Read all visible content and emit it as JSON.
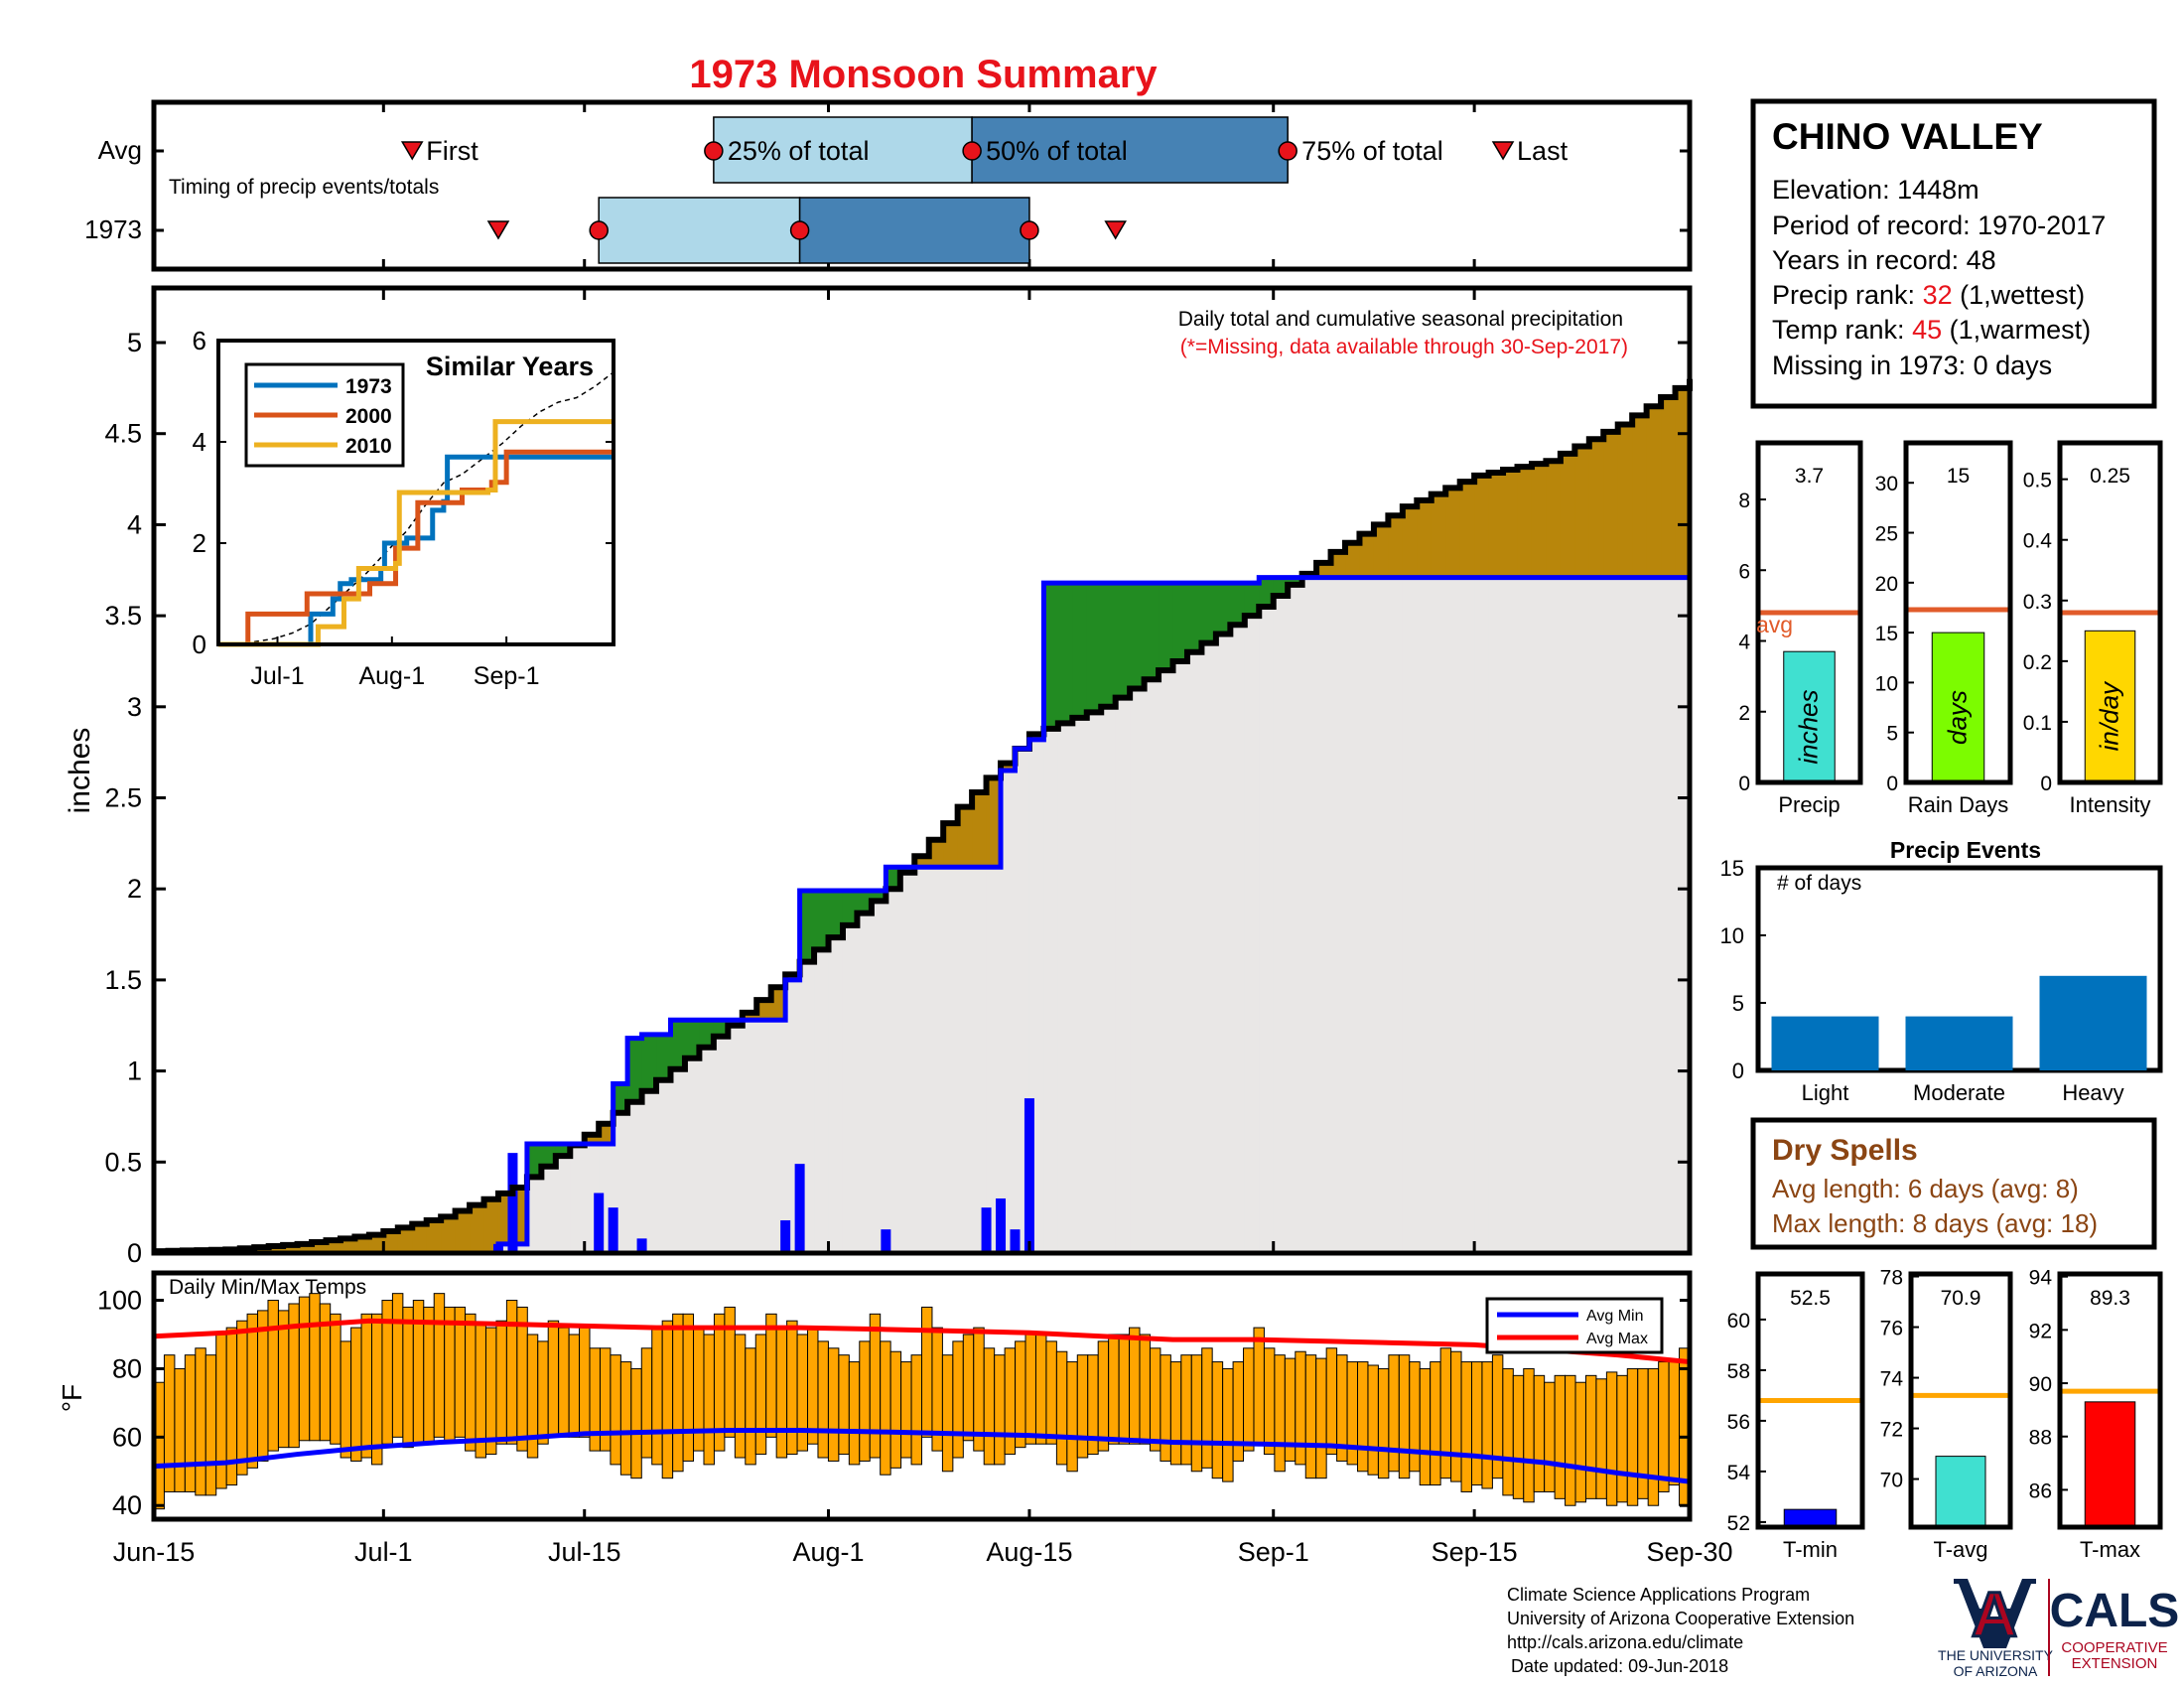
{
  "title": "1973 Monsoon Summary",
  "station": {
    "name": "CHINO VALLEY",
    "lines": {
      "elevation": "Elevation: 1448m",
      "period": "Period of record: 1970-2017",
      "years": "Years in record: 48",
      "precip_rank_prefix": "Precip rank: ",
      "precip_rank_value": "32",
      "precip_rank_suffix": " (1,wettest)",
      "temp_rank_prefix": "Temp rank: ",
      "temp_rank_value": "45",
      "temp_rank_suffix": " (1,warmest)",
      "missing": "Missing in 1973: 0 days"
    }
  },
  "colors": {
    "title": "#e8131b",
    "rank": "#e8131b",
    "light_blue": "#aed8e9",
    "mid_blue": "#4682b4",
    "marker_red": "#e8131b",
    "cum_fill_brown": "#b8860b",
    "cum_fill_green": "#228b22",
    "cum_bg": "#e9e7e6",
    "daily_bar": "#0000ff",
    "orange": "#ffa500",
    "avg_line": "#e15b2a",
    "dry_brown": "#8b4513"
  },
  "footer": {
    "line1": "Climate Science Applications Program",
    "line2": "University of Arizona Cooperative Extension",
    "line3": "http://cals.arizona.edu/climate",
    "line4": "Date updated: 09-Jun-2018"
  },
  "logos": {
    "ua_letter": "A",
    "ua_text1": "THE UNIVERSITY",
    "ua_text2": "OF ARIZONA",
    "cals": "CALS",
    "cals_text1": "COOPERATIVE",
    "cals_text2": "EXTENSION"
  },
  "chart_data": [
    {
      "id": "timing",
      "type": "box",
      "annotation": "Timing of precip events/totals",
      "rows": [
        {
          "label": "Avg",
          "first": "Jul-3",
          "p25": "Jul-24",
          "p50": "Aug-11",
          "p75": "Sep-2",
          "last": "Sep-17",
          "labels": {
            "first": "First",
            "p25": "25% of total",
            "p50": "50% of total",
            "p75": "75% of total",
            "last": "Last"
          }
        },
        {
          "label": "1973",
          "first": "Jul-9",
          "p25": "Jul-16",
          "p50": "Jul-30",
          "p75": "Aug-15",
          "last": "Aug-21"
        }
      ]
    },
    {
      "id": "cumulative",
      "type": "area",
      "annotation": "Daily total and cumulative seasonal precipitation",
      "annotation2": "(*=Missing, data available through 30-Sep-2017)",
      "ylabel": "inches",
      "ylim": [
        0,
        5.3
      ],
      "yticks": [
        "0",
        "0.5",
        "1",
        "1.5",
        "2",
        "2.5",
        "3",
        "3.5",
        "4",
        "4.5",
        "5"
      ],
      "xticks": [
        "Jun-15",
        "Jul-1",
        "Jul-15",
        "Aug-1",
        "Aug-15",
        "Sep-1",
        "Sep-15",
        "Sep-30"
      ],
      "avg_cumulative": {
        "dates": [
          "Jun-15",
          "Jun-20",
          "Jun-25",
          "Jun-30",
          "Jul-5",
          "Jul-10",
          "Jul-15",
          "Jul-20",
          "Jul-25",
          "Jul-30",
          "Aug-5",
          "Aug-10",
          "Aug-15",
          "Aug-20",
          "Aug-25",
          "Aug-31",
          "Sep-5",
          "Sep-10",
          "Sep-15",
          "Sep-20",
          "Sep-25",
          "Sep-30"
        ],
        "values": [
          0.01,
          0.02,
          0.05,
          0.1,
          0.2,
          0.36,
          0.65,
          0.95,
          1.25,
          1.6,
          2.0,
          2.45,
          2.85,
          3.0,
          3.25,
          3.55,
          3.85,
          4.1,
          4.27,
          4.35,
          4.55,
          4.8
        ]
      },
      "year_1973_cumulative": {
        "dates": [
          "Jun-15",
          "Jul-8",
          "Jul-9",
          "Jul-10",
          "Jul-11",
          "Jul-16",
          "Jul-17",
          "Jul-18",
          "Jul-19",
          "Jul-21",
          "Jul-27",
          "Jul-28",
          "Jul-29",
          "Jul-30",
          "Aug-5",
          "Aug-9",
          "Aug-12",
          "Aug-13",
          "Aug-14",
          "Aug-15",
          "Aug-16",
          "Aug-31",
          "Sep-30"
        ],
        "values": [
          0,
          0,
          0.05,
          0.05,
          0.6,
          0.6,
          0.93,
          1.18,
          1.2,
          1.28,
          1.28,
          1.28,
          1.5,
          1.99,
          2.12,
          2.12,
          2.12,
          2.65,
          2.77,
          2.82,
          3.68,
          3.71,
          3.71
        ]
      },
      "daily_1973": {
        "dates": [
          "Jul-9",
          "Jul-10",
          "Jul-16",
          "Jul-17",
          "Jul-19",
          "Jul-29",
          "Jul-30",
          "Aug-5",
          "Aug-12",
          "Aug-13",
          "Aug-14",
          "Aug-15"
        ],
        "values": [
          0.05,
          0.55,
          0.33,
          0.25,
          0.08,
          0.18,
          0.49,
          0.13,
          0.25,
          0.3,
          0.13,
          0.85
        ]
      }
    },
    {
      "id": "similar_years",
      "type": "line",
      "title": "Similar Years",
      "ylim": [
        0,
        6
      ],
      "yticks": [
        "0",
        "2",
        "4",
        "6"
      ],
      "xticks": [
        "Jul-1",
        "Aug-1",
        "Sep-1"
      ],
      "series": [
        {
          "name": "1973",
          "color": "#0072bd",
          "dates": [
            "Jun-15",
            "Jul-9",
            "Jul-10",
            "Jul-16",
            "Jul-18",
            "Jul-21",
            "Jul-29",
            "Jul-30",
            "Aug-5",
            "Aug-12",
            "Aug-15",
            "Aug-16",
            "Sep-30"
          ],
          "values": [
            0,
            0,
            0.6,
            0.9,
            1.2,
            1.28,
            1.5,
            2.0,
            2.1,
            2.65,
            2.82,
            3.7,
            3.7
          ]
        },
        {
          "name": "2000",
          "color": "#d95319",
          "dates": [
            "Jun-15",
            "Jun-22",
            "Jun-23",
            "Jul-8",
            "Jul-9",
            "Jul-20",
            "Jul-26",
            "Jul-30",
            "Aug-2",
            "Aug-8",
            "Aug-20",
            "Aug-28",
            "Sep-1",
            "Sep-30"
          ],
          "values": [
            0,
            0,
            0.6,
            0.6,
            1.0,
            1.0,
            1.2,
            1.2,
            1.9,
            2.8,
            3.05,
            3.2,
            3.8,
            3.8
          ]
        },
        {
          "name": "2010",
          "color": "#edb120",
          "dates": [
            "Jun-15",
            "Jul-11",
            "Jul-12",
            "Jul-19",
            "Jul-23",
            "Jul-29",
            "Aug-2",
            "Aug-3",
            "Aug-15",
            "Aug-27",
            "Aug-29",
            "Sep-30"
          ],
          "values": [
            0,
            0,
            0.35,
            0.9,
            1.5,
            1.5,
            1.6,
            3.0,
            3.0,
            3.05,
            4.4,
            4.4
          ]
        }
      ]
    },
    {
      "id": "season_totals",
      "type": "bar",
      "panels": [
        {
          "label": "Precip",
          "unit": "inches",
          "value": 3.7,
          "value_label": "3.7",
          "avg": 4.8,
          "avg_label": "avg",
          "ylim": [
            0,
            9.6
          ],
          "yticks": [
            "0",
            "2",
            "4",
            "6",
            "8"
          ],
          "color": "#40e0d0"
        },
        {
          "label": "Rain Days",
          "unit": "days",
          "value": 15,
          "value_label": "15",
          "avg": 17.3,
          "ylim": [
            0,
            34
          ],
          "yticks": [
            "0",
            "5",
            "10",
            "15",
            "20",
            "25",
            "30"
          ],
          "color": "#7cfc00"
        },
        {
          "label": "Intensity",
          "unit": "in/day",
          "value": 0.25,
          "value_label": "0.25",
          "avg": 0.28,
          "ylim": [
            0,
            0.56
          ],
          "yticks": [
            "0",
            "0.1",
            "0.2",
            "0.3",
            "0.4",
            "0.5"
          ],
          "color": "#ffd700"
        }
      ]
    },
    {
      "id": "precip_events",
      "type": "bar",
      "title": "Precip Events",
      "ylabel": "# of days",
      "categories": [
        "Light",
        "Moderate",
        "Heavy"
      ],
      "values": [
        4,
        4,
        7
      ],
      "ylim": [
        0,
        15
      ],
      "yticks": [
        "0",
        "5",
        "10",
        "15"
      ]
    },
    {
      "id": "dry_spells",
      "type": "table",
      "title": "Dry Spells",
      "rows": [
        "Avg length: 6 days (avg: 8)",
        "Max length: 8 days (avg: 18)"
      ]
    },
    {
      "id": "temps",
      "type": "bar",
      "annotation": "Daily Min/Max Temps",
      "ylabel": "°F",
      "ylim": [
        36,
        108
      ],
      "yticks": [
        "40",
        "60",
        "80",
        "100"
      ],
      "xticks": [
        "Jun-15",
        "Jul-1",
        "Jul-15",
        "Aug-1",
        "Aug-15",
        "Sep-1",
        "Sep-15",
        "Sep-30"
      ],
      "legend": [
        "Avg Min",
        "Avg Max"
      ],
      "daily_min": [
        39,
        44,
        44,
        44,
        43,
        43,
        45,
        46,
        49,
        51,
        53,
        56,
        57,
        57,
        59,
        59,
        59,
        58,
        54,
        53,
        54,
        52,
        58,
        60,
        57,
        58,
        58,
        60,
        59,
        60,
        56,
        54,
        55,
        58,
        58,
        56,
        54,
        58,
        60,
        60,
        60,
        60,
        56,
        56,
        52,
        49,
        48,
        54,
        52,
        48,
        50,
        53,
        56,
        52,
        56,
        60,
        54,
        52,
        55,
        60,
        54,
        55,
        56,
        58,
        54,
        53,
        55,
        52,
        53,
        54,
        49,
        51,
        54,
        52,
        60,
        56,
        50,
        54,
        59,
        56,
        52,
        52,
        55,
        57,
        58,
        58,
        58,
        52,
        50,
        54,
        55,
        56,
        58,
        58,
        58,
        58,
        56,
        53,
        52,
        52,
        50,
        51,
        48,
        47,
        53,
        56,
        58,
        55,
        50,
        53,
        52,
        48,
        48,
        55,
        53,
        52,
        50,
        49,
        48,
        50,
        48,
        50,
        46,
        46,
        48,
        47,
        44,
        46,
        45,
        48,
        43,
        42,
        41,
        44,
        44,
        42,
        40,
        41,
        42,
        42,
        40,
        41,
        40,
        42,
        40,
        44,
        46,
        40
      ],
      "daily_max": [
        76,
        84,
        80,
        84,
        86,
        84,
        90,
        92,
        94,
        96,
        97,
        100,
        97,
        99,
        101,
        102,
        99,
        96,
        88,
        92,
        96,
        96,
        100,
        102,
        98,
        100,
        98,
        102,
        98,
        98,
        96,
        93,
        92,
        94,
        100,
        98,
        90,
        88,
        94,
        92,
        90,
        92,
        86,
        86,
        84,
        82,
        80,
        86,
        92,
        94,
        96,
        96,
        92,
        90,
        96,
        98,
        90,
        86,
        90,
        96,
        92,
        94,
        90,
        92,
        88,
        86,
        84,
        82,
        88,
        96,
        88,
        85,
        82,
        84,
        98,
        92,
        84,
        88,
        90,
        92,
        86,
        84,
        86,
        88,
        90,
        90,
        88,
        85,
        82,
        84,
        84,
        88,
        90,
        90,
        92,
        90,
        86,
        84,
        82,
        84,
        84,
        86,
        82,
        80,
        82,
        86,
        92,
        86,
        84,
        83,
        85,
        84,
        83,
        86,
        84,
        82,
        82,
        81,
        80,
        84,
        84,
        82,
        80,
        82,
        86,
        85,
        82,
        82,
        82,
        84,
        80,
        78,
        80,
        78,
        76,
        78,
        78,
        76,
        78,
        77,
        79,
        78,
        80,
        80,
        80,
        82,
        82,
        86
      ],
      "avg_min": {
        "dates": [
          "Jun-15",
          "Jun-20",
          "Jun-25",
          "Jun-30",
          "Jul-5",
          "Jul-10",
          "Jul-15",
          "Jul-20",
          "Jul-25",
          "Jul-30",
          "Aug-5",
          "Aug-10",
          "Aug-15",
          "Aug-20",
          "Aug-25",
          "Aug-31",
          "Sep-5",
          "Sep-10",
          "Sep-15",
          "Sep-20",
          "Sep-25",
          "Sep-30"
        ],
        "values": [
          51.5,
          52.5,
          55,
          57,
          58.5,
          59.5,
          61,
          61.5,
          62,
          62,
          61.5,
          61,
          60.5,
          59.5,
          58.5,
          58,
          57.5,
          56,
          54.5,
          52.5,
          49.5,
          47
        ]
      },
      "avg_max": {
        "dates": [
          "Jun-15",
          "Jun-20",
          "Jun-25",
          "Jun-30",
          "Jul-5",
          "Jul-10",
          "Jul-15",
          "Jul-20",
          "Jul-25",
          "Jul-30",
          "Aug-5",
          "Aug-10",
          "Aug-15",
          "Aug-20",
          "Aug-25",
          "Aug-31",
          "Sep-5",
          "Sep-10",
          "Sep-15",
          "Sep-20",
          "Sep-25",
          "Sep-30"
        ],
        "values": [
          89.5,
          90.5,
          92.5,
          94,
          93.5,
          93,
          92.5,
          92,
          92,
          92,
          91.5,
          91,
          90.5,
          89.5,
          88.5,
          88.5,
          88,
          87.5,
          87,
          85.5,
          84,
          82
        ]
      }
    },
    {
      "id": "temp_summary",
      "type": "bar",
      "panels": [
        {
          "label": "T-min",
          "value": 52.5,
          "value_label": "52.5",
          "avg": 56.8,
          "ylim": [
            51.8,
            61.8
          ],
          "yticks": [
            "52",
            "54",
            "56",
            "58",
            "60"
          ],
          "color": "#0000ff"
        },
        {
          "label": "T-avg",
          "value": 70.9,
          "value_label": "70.9",
          "avg": 73.3,
          "ylim": [
            68.1,
            78.1
          ],
          "yticks": [
            "70",
            "72",
            "74",
            "76",
            "78"
          ],
          "color": "#40e0d0"
        },
        {
          "label": "T-max",
          "value": 89.3,
          "value_label": "89.3",
          "avg": 89.7,
          "ylim": [
            84.6,
            94.1
          ],
          "yticks": [
            "86",
            "88",
            "90",
            "92",
            "94"
          ],
          "color": "#ff0000"
        }
      ]
    }
  ]
}
